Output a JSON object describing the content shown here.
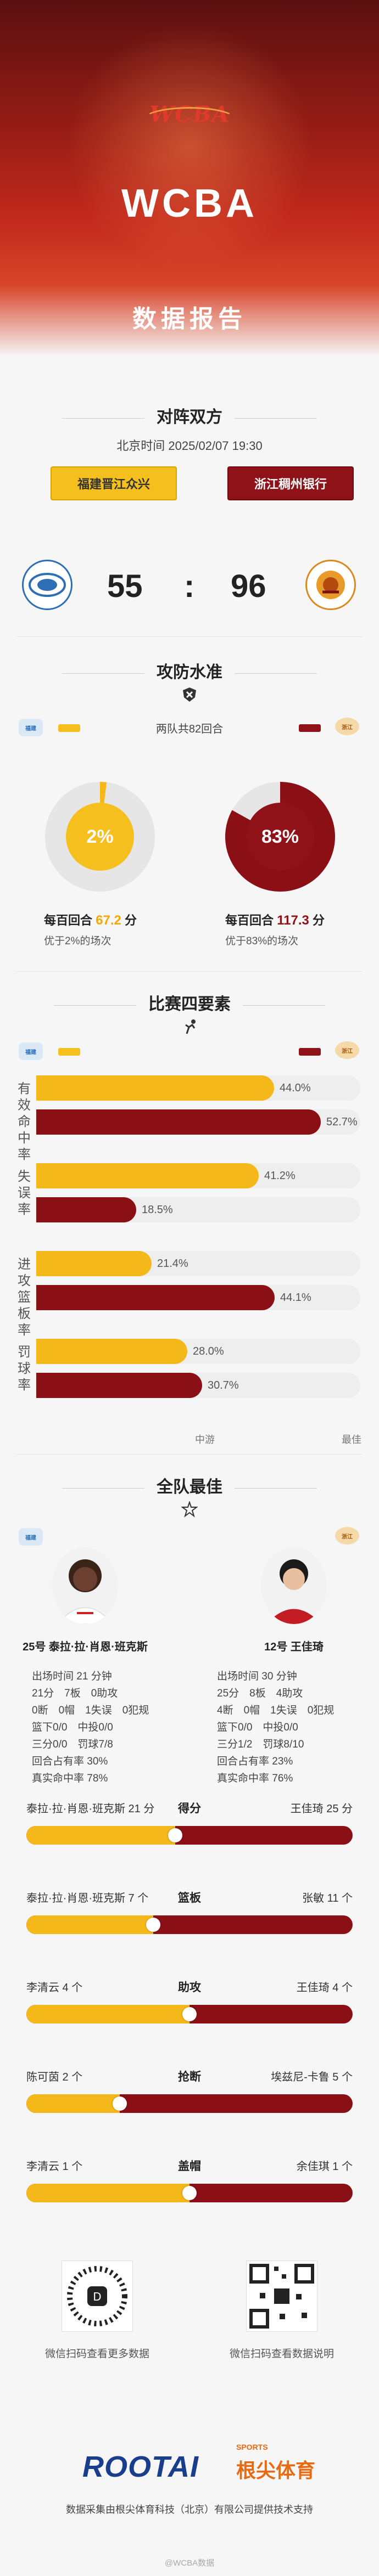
{
  "header": {
    "logo_text": "WCBA",
    "title": "WCBA",
    "subtitle": "数据报告"
  },
  "matchup": {
    "section_title": "对阵双方",
    "datetime": "北京时间 2025/02/07 19:30",
    "home_team": "福建晋江众兴",
    "away_team": "浙江稠州银行",
    "home_score": "55",
    "separator": ":",
    "away_score": "96",
    "home_logo_icon": "fujian-team-logo",
    "away_logo_icon": "zhejiang-lions-logo"
  },
  "efficiency": {
    "section_title": "攻防水准",
    "icon": "shield-cross-icon",
    "possessions_note": "两队共82回合",
    "home": {
      "ring_value": "2%",
      "percentile": 0.02,
      "label_prefix": "每百回合",
      "value": "67.2",
      "label_suffix": "分",
      "sub": "优于2%的场次"
    },
    "away": {
      "ring_value": "83%",
      "percentile": 0.83,
      "label_prefix": "每百回合",
      "value": "117.3",
      "label_suffix": "分",
      "sub": "优于83%的场次"
    },
    "colors": {
      "home": "#f5b81a",
      "away": "#8b1015"
    }
  },
  "four_factors": {
    "section_title": "比赛四要素",
    "icon": "basketball-player-icon",
    "rows": [
      {
        "label": "有效命中率",
        "home": "44.0%",
        "home_value": 44.0,
        "away": "52.7%",
        "away_value": 52.7
      },
      {
        "label": "失误率",
        "home": "41.2%",
        "home_value": 41.2,
        "away": "18.5%",
        "away_value": 18.5
      },
      {
        "label": "进攻篮板率",
        "home": "21.4%",
        "home_value": 21.4,
        "away": "44.1%",
        "away_value": 44.1
      },
      {
        "label": "罚球率",
        "home": "28.0%",
        "home_value": 28.0,
        "away": "30.7%",
        "away_value": 30.7
      }
    ],
    "axis_mid": "中游",
    "axis_best": "最佳"
  },
  "best": {
    "section_title": "全队最佳",
    "icon": "star-trophy-icon",
    "home_player": {
      "name": "25号 泰拉·拉·肖恩·班克斯",
      "lines": [
        "出场时间 21 分钟",
        "21分　7板　0助攻",
        "0断　0帽　1失误　0犯规",
        "篮下0/0　中投0/0",
        "三分0/0　罚球7/8",
        "回合占有率 30%",
        "真实命中率 78%"
      ]
    },
    "away_player": {
      "name": "12号 王佳琦",
      "lines": [
        "出场时间 30 分钟",
        "25分　8板　4助攻",
        "4断　0帽　1失误　0犯规",
        "篮下0/0　中投0/0",
        "三分1/2　罚球8/10",
        "回合占有率 23%",
        "真实命中率 76%"
      ]
    },
    "comparisons": [
      {
        "category": "得分",
        "home": "泰拉·拉·肖恩·班克斯 21 分",
        "away": "王佳琦 25 分",
        "home_value": 21,
        "away_value": 25
      },
      {
        "category": "篮板",
        "home": "泰拉·拉·肖恩·班克斯 7 个",
        "away": "张敏 11 个",
        "home_value": 7,
        "away_value": 11
      },
      {
        "category": "助攻",
        "home": "李清云 4 个",
        "away": "王佳琦 4 个",
        "home_value": 4,
        "away_value": 4
      },
      {
        "category": "抢断",
        "home": "陈可茵 2 个",
        "away": "埃兹尼-卡鲁 5 个",
        "home_value": 2,
        "away_value": 5
      },
      {
        "category": "盖帽",
        "home": "李清云 1 个",
        "away": "余佳琪 1 个",
        "home_value": 1,
        "away_value": 1
      }
    ]
  },
  "footer": {
    "qr_left_caption": "微信扫码查看更多数据",
    "qr_right_caption": "微信扫码查看数据说明",
    "brand": "ROOTAI",
    "brand_sports": "SPORTS",
    "brand_cn": "根尖体育",
    "note": "数据采集由根尖体育科技（北京）有限公司提供技术支持",
    "watermark": "@WCBA数据"
  }
}
